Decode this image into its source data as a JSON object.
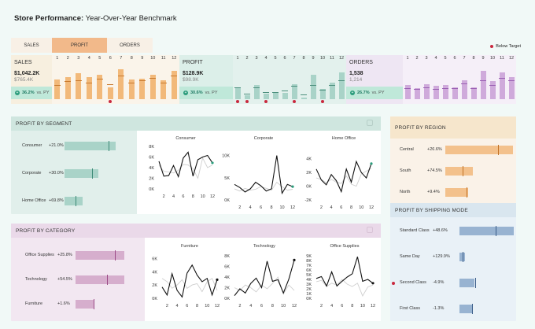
{
  "header": {
    "title_bold": "Store Performance:",
    "title_rest": " Year-Over-Year Benchmark"
  },
  "tabs": [
    {
      "label": "SALES",
      "active": false
    },
    {
      "label": "PROFIT",
      "active": true
    },
    {
      "label": "ORDERS",
      "active": false
    }
  ],
  "legend": {
    "label": "Below Target",
    "color": "#c9283e"
  },
  "months": [
    "1",
    "2",
    "3",
    "4",
    "5",
    "6",
    "7",
    "8",
    "9",
    "10",
    "11",
    "12"
  ],
  "kpis": [
    {
      "label": "SALES",
      "value": "$1,042.2K",
      "py": "$765.4K",
      "change": "36.2%",
      "suffix": " vs. PY",
      "bg": "#f7efdf",
      "badge_bg": "#bfe8d9",
      "chart_bg": "#faf4ea",
      "bar_color": "#f2b97a",
      "mark_color": "#c97a2e",
      "chart_data": {
        "type": "bar",
        "categories": [
          "1",
          "2",
          "3",
          "4",
          "5",
          "6",
          "7",
          "8",
          "9",
          "10",
          "11",
          "12"
        ],
        "values": [
          42,
          48,
          55,
          47,
          52,
          26,
          64,
          42,
          44,
          52,
          40,
          60
        ],
        "py_values": [
          30,
          38,
          40,
          35,
          44,
          32,
          50,
          36,
          40,
          45,
          36,
          50
        ],
        "below_target": [
          6
        ]
      }
    },
    {
      "label": "PROFIT",
      "value": "$128.9K",
      "py": "$98.9K",
      "change": "30.6%",
      "suffix": " vs. PY",
      "bg": "#dcefe9",
      "badge_bg": "#bfe8d9",
      "chart_bg": "#e3f1ed",
      "bar_color": "#a9d3c8",
      "mark_color": "#4c8f7d",
      "chart_data": {
        "type": "bar",
        "categories": [
          "1",
          "2",
          "3",
          "4",
          "5",
          "6",
          "7",
          "8",
          "9",
          "10",
          "11",
          "12"
        ],
        "values": [
          24,
          9,
          30,
          11,
          14,
          14,
          32,
          4,
          53,
          22,
          35,
          58
        ],
        "py_values": [
          26,
          12,
          26,
          16,
          15,
          18,
          28,
          10,
          30,
          20,
          30,
          40
        ],
        "below_target": [
          1,
          2,
          4,
          7,
          10
        ]
      }
    },
    {
      "label": "ORDERS",
      "value": "1,538",
      "py": "1,214",
      "change": "26.7%",
      "suffix": " vs. PY",
      "bg": "#eee6f3",
      "badge_bg": "#bfe8d9",
      "chart_bg": "#f5eff8",
      "bar_color": "#cfaadb",
      "mark_color": "#9a5fb3",
      "chart_data": {
        "type": "bar",
        "categories": [
          "1",
          "2",
          "3",
          "4",
          "5",
          "6",
          "7",
          "8",
          "9",
          "10",
          "11",
          "12"
        ],
        "values": [
          30,
          24,
          32,
          28,
          30,
          26,
          40,
          26,
          60,
          38,
          58,
          48
        ],
        "py_values": [
          24,
          22,
          26,
          22,
          24,
          24,
          34,
          24,
          40,
          30,
          46,
          40
        ],
        "below_target": []
      }
    }
  ],
  "segment": {
    "title": "PROFIT BY SEGMENT",
    "rows": [
      {
        "label": "Consumer",
        "pct": "+21.0%",
        "value": 72,
        "py": 62
      },
      {
        "label": "Corporate",
        "pct": "+30.0%",
        "value": 48,
        "py": 39
      },
      {
        "label": "Home Office",
        "pct": "+69.8%",
        "value": 25,
        "py": 15
      }
    ],
    "charts": [
      {
        "title": "Consumer",
        "yticks": [
          "0K",
          "2K",
          "4K",
          "6K",
          "8K"
        ],
        "ymin": 0,
        "ymax": 8,
        "chart_data": {
          "type": "line",
          "x": [
            1,
            2,
            3,
            4,
            5,
            6,
            7,
            8,
            9,
            10,
            11,
            12
          ],
          "series": [
            {
              "values": [
                5.2,
                2.4,
                2.5,
                4.4,
                2.3,
                5.8,
                6.9,
                2.4,
                5.5,
                6.0,
                6.3,
                4.9
              ]
            },
            {
              "values": [
                4.5,
                3.3,
                3.2,
                3.0,
                3.5,
                4.6,
                4.5,
                3.8,
                2.0,
                5.8,
                4.0,
                4.5
              ]
            }
          ]
        }
      },
      {
        "title": "Corporate",
        "yticks": [
          "0K",
          "5K",
          "10K"
        ],
        "ymin": 0,
        "ymax": 11,
        "chart_data": {
          "type": "line",
          "x": [
            1,
            2,
            3,
            4,
            5,
            6,
            7,
            8,
            9,
            10,
            11,
            12
          ],
          "series": [
            {
              "values": [
                3.5,
                2.8,
                1.8,
                2.5,
                4.0,
                3.2,
                2.0,
                2.5,
                10.0,
                1.5,
                3.5,
                3.0
              ]
            },
            {
              "values": [
                2.5,
                2.0,
                2.6,
                2.2,
                2.4,
                3.0,
                2.6,
                2.2,
                4.0,
                3.0,
                2.2,
                2.4
              ]
            }
          ]
        }
      },
      {
        "title": "Home Office",
        "yticks": [
          "-2K",
          "0K",
          "2K",
          "4K"
        ],
        "ymin": -2,
        "ymax": 4.2,
        "chart_data": {
          "type": "line",
          "x": [
            1,
            2,
            3,
            4,
            5,
            6,
            7,
            8,
            9,
            10,
            11,
            12
          ],
          "series": [
            {
              "values": [
                2.5,
                0.9,
                0.2,
                1.7,
                0.8,
                -0.8,
                2.5,
                0.6,
                3.6,
                2.0,
                1.2,
                3.3
              ]
            },
            {
              "values": [
                1.2,
                1.0,
                0.5,
                1.0,
                0.6,
                0.4,
                1.5,
                0.3,
                0.0,
                1.8,
                2.2,
                2.6
              ]
            }
          ]
        }
      }
    ],
    "x_ticks": [
      "2",
      "4",
      "6",
      "8",
      "10",
      "12"
    ]
  },
  "category": {
    "title": "PROFIT BY CATEGORY",
    "rows": [
      {
        "label": "Office Supplies",
        "pct": "+25.8%",
        "value": 78,
        "py": 62
      },
      {
        "label": "Technology",
        "pct": "+54.5%",
        "value": 78,
        "py": 50
      },
      {
        "label": "Furniture",
        "pct": "+1.6%",
        "value": 30,
        "py": 29
      }
    ],
    "charts": [
      {
        "title": "Furniture",
        "yticks": [
          "0K",
          "2K",
          "4K",
          "6K"
        ],
        "ymin": 0,
        "ymax": 6.4,
        "chart_data": {
          "type": "line",
          "x": [
            1,
            2,
            3,
            4,
            5,
            6,
            7,
            8,
            9,
            10,
            11,
            12
          ],
          "series": [
            {
              "values": [
                1.7,
                0.5,
                3.7,
                1.2,
                0.2,
                3.8,
                5.0,
                3.5,
                2.5,
                3.0,
                0.5,
                2.8
              ]
            },
            {
              "values": [
                3.0,
                2.5,
                1.5,
                2.0,
                2.8,
                1.5,
                2.0,
                2.2,
                1.0,
                2.5,
                3.0,
                1.2
              ]
            }
          ]
        }
      },
      {
        "title": "Technology",
        "yticks": [
          "0K",
          "2K",
          "4K",
          "6K",
          "8K"
        ],
        "ymin": 0,
        "ymax": 8,
        "chart_data": {
          "type": "line",
          "x": [
            1,
            2,
            3,
            4,
            5,
            6,
            7,
            8,
            9,
            10,
            11,
            12
          ],
          "series": [
            {
              "values": [
                0.5,
                1.8,
                1.0,
                2.8,
                3.8,
                2.0,
                7.0,
                3.2,
                3.5,
                1.0,
                3.6,
                7.2
              ]
            },
            {
              "values": [
                2.0,
                1.5,
                2.5,
                2.0,
                1.2,
                2.5,
                1.8,
                2.8,
                4.0,
                0.8,
                2.5,
                1.5
              ]
            }
          ]
        }
      },
      {
        "title": "Office Supplies",
        "yticks": [
          "0K",
          "1K",
          "2K",
          "3K",
          "4K",
          "5K",
          "6K",
          "7K",
          "8K",
          "9K"
        ],
        "ymin": 0,
        "ymax": 9,
        "chart_data": {
          "type": "line",
          "x": [
            1,
            2,
            3,
            4,
            5,
            6,
            7,
            8,
            9,
            10,
            11,
            12
          ],
          "series": [
            {
              "values": [
                4.2,
                4.6,
                2.6,
                5.6,
                2.6,
                3.6,
                4.5,
                5.2,
                8.8,
                3.6,
                4.0,
                3.2
              ]
            },
            {
              "values": [
                3.5,
                3.8,
                2.5,
                3.2,
                2.8,
                4.0,
                3.0,
                2.5,
                3.2,
                0.5,
                2.4,
                2.8
              ]
            }
          ]
        }
      }
    ],
    "x_ticks": [
      "2",
      "4",
      "6",
      "8",
      "10",
      "12"
    ]
  },
  "region": {
    "title": "PROFIT BY REGION",
    "rows": [
      {
        "label": "Central",
        "pct": "+26.6%",
        "value": 88,
        "py": 68
      },
      {
        "label": "South",
        "pct": "+74.5%",
        "value": 36,
        "py": 22
      },
      {
        "label": "North",
        "pct": "+9.4%",
        "value": 30,
        "py": 28
      }
    ]
  },
  "shipping": {
    "title": "PROFIT BY SHIPPING MODE",
    "rows": [
      {
        "label": "Standard Class",
        "pct": "+48.6%",
        "value": 70,
        "py": 47,
        "below": false
      },
      {
        "label": "Same Day",
        "pct": "+129.9%",
        "value": 7,
        "py": 4,
        "below": false
      },
      {
        "label": "Second Class",
        "pct": "-4.9%",
        "value": 19,
        "py": 20,
        "below": true
      },
      {
        "label": "First Class",
        "pct": "-1.3%",
        "value": 16,
        "py": 16,
        "below": false
      }
    ]
  }
}
